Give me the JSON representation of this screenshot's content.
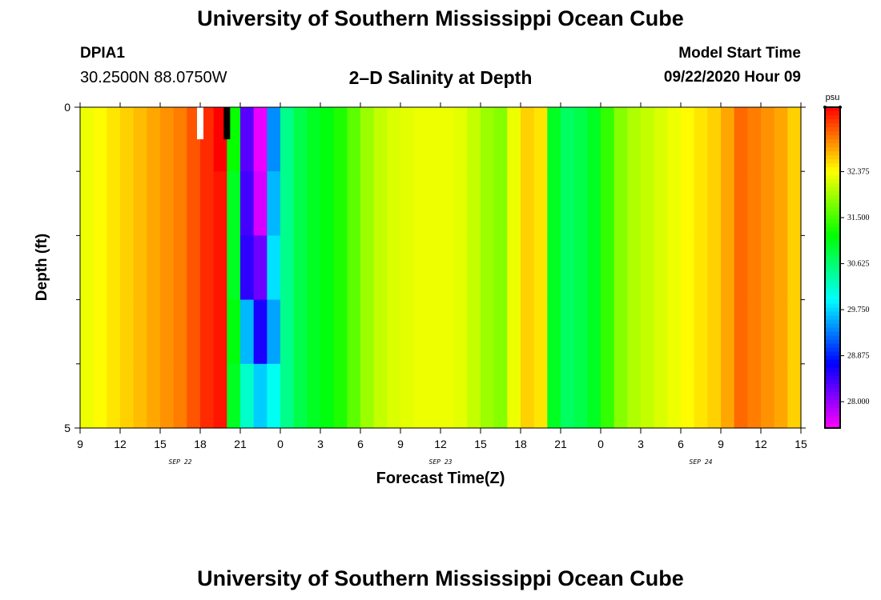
{
  "header": {
    "title": "University of Southern Mississippi Ocean Cube",
    "station_id": "DPIA1",
    "station_coords": "30.2500N 88.0750W",
    "plot_title": "2–D Salinity at Depth",
    "model_start_label": "Model Start Time",
    "model_start_time": "09/22/2020 Hour 09"
  },
  "footer": {
    "title": "University of Southern Mississippi Ocean Cube"
  },
  "colors": {
    "missing_white": "#ffffff",
    "missing_black": "#000000"
  },
  "chart_data": {
    "type": "heatmap",
    "title": "2–D Salinity at Depth",
    "xlabel": "Forecast Time(Z)",
    "ylabel": "Depth (ft)",
    "x_range_hours": [
      0,
      54
    ],
    "x_ticks": [
      {
        "h": 0,
        "label": "9"
      },
      {
        "h": 3,
        "label": "12"
      },
      {
        "h": 6,
        "label": "15"
      },
      {
        "h": 9,
        "label": "18"
      },
      {
        "h": 12,
        "label": "21"
      },
      {
        "h": 15,
        "label": "0"
      },
      {
        "h": 18,
        "label": "3"
      },
      {
        "h": 21,
        "label": "6"
      },
      {
        "h": 24,
        "label": "9"
      },
      {
        "h": 27,
        "label": "12"
      },
      {
        "h": 30,
        "label": "15"
      },
      {
        "h": 33,
        "label": "18"
      },
      {
        "h": 36,
        "label": "21"
      },
      {
        "h": 39,
        "label": "0"
      },
      {
        "h": 42,
        "label": "3"
      },
      {
        "h": 45,
        "label": "6"
      },
      {
        "h": 48,
        "label": "9"
      },
      {
        "h": 51,
        "label": "12"
      },
      {
        "h": 54,
        "label": "15"
      }
    ],
    "date_labels": [
      {
        "h": 7.5,
        "label": "SEP 22"
      },
      {
        "h": 27,
        "label": "SEP 23"
      },
      {
        "h": 46.5,
        "label": "SEP 24"
      }
    ],
    "y_range": [
      0,
      5
    ],
    "y_tick_labels": [
      {
        "v": 0,
        "label": "0"
      },
      {
        "v": 5,
        "label": "5"
      }
    ],
    "y_minor_ticks": [
      1,
      2,
      3,
      4
    ],
    "depth_levels": 5,
    "time_step_hours": 1,
    "column_values": [
      32.3,
      32.4,
      32.5,
      32.6,
      32.7,
      32.8,
      32.9,
      33.0,
      33.2,
      33.4,
      33.1,
      31.0,
      27.8,
      27.5,
      29.6,
      30.5,
      30.8,
      31.0,
      31.1,
      31.3,
      31.6,
      31.9,
      32.1,
      32.2,
      32.25,
      32.3,
      32.3,
      32.3,
      32.25,
      32.1,
      31.9,
      31.8,
      32.3,
      32.6,
      32.5,
      31.0,
      30.7,
      30.8,
      31.0,
      31.4,
      31.8,
      32.0,
      32.1,
      32.2,
      32.3,
      32.4,
      32.5,
      32.6,
      32.8,
      33.1,
      33.0,
      32.9,
      32.8,
      32.6
    ],
    "column_overrides": [
      {
        "col": 10,
        "values": [
          33.6,
          33.5,
          33.5,
          33.5,
          33.5
        ]
      },
      {
        "col": 11,
        "values": [
          31.2,
          31.0,
          31.0,
          31.1,
          31.0
        ]
      },
      {
        "col": 12,
        "values": [
          28.3,
          28.4,
          28.5,
          29.6,
          30.2
        ]
      },
      {
        "col": 13,
        "values": [
          27.6,
          27.7,
          28.2,
          28.6,
          29.7
        ]
      },
      {
        "col": 14,
        "values": [
          29.4,
          29.6,
          29.8,
          29.5,
          30.0
        ]
      }
    ],
    "missing_cells": [
      {
        "h": 9,
        "depth_frac": 0.1,
        "color": "white"
      },
      {
        "h": 11,
        "depth_frac": 0.1,
        "color": "black"
      }
    ],
    "colorbar": {
      "unit": "psu",
      "min": 27.5,
      "max": 33.6,
      "ticks": [
        "28.000",
        "28.875",
        "29.750",
        "30.625",
        "31.500",
        "32.375"
      ]
    }
  }
}
